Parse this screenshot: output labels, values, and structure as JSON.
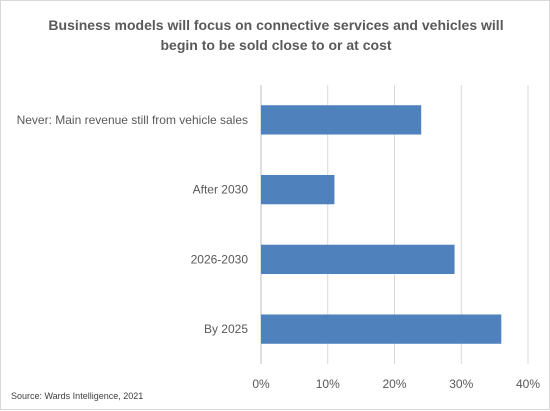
{
  "chart_data": {
    "type": "bar",
    "orientation": "horizontal",
    "title": "Business models will focus on connective services and vehicles will begin to be sold close to or at cost",
    "categories": [
      "Never: Main revenue still from vehicle sales",
      "After 2030",
      "2026-2030",
      "By 2025"
    ],
    "values": [
      24,
      11,
      29,
      36
    ],
    "xlim": [
      0,
      40
    ],
    "x_ticks": [
      0,
      10,
      20,
      30,
      40
    ],
    "x_tick_labels": [
      "0%",
      "10%",
      "20%",
      "30%",
      "40%"
    ],
    "xlabel": "",
    "ylabel": "",
    "grid": "vertical",
    "legend": "none",
    "bar_color": "#4f81bd",
    "source": "Source: Wards Intelligence, 2021"
  }
}
